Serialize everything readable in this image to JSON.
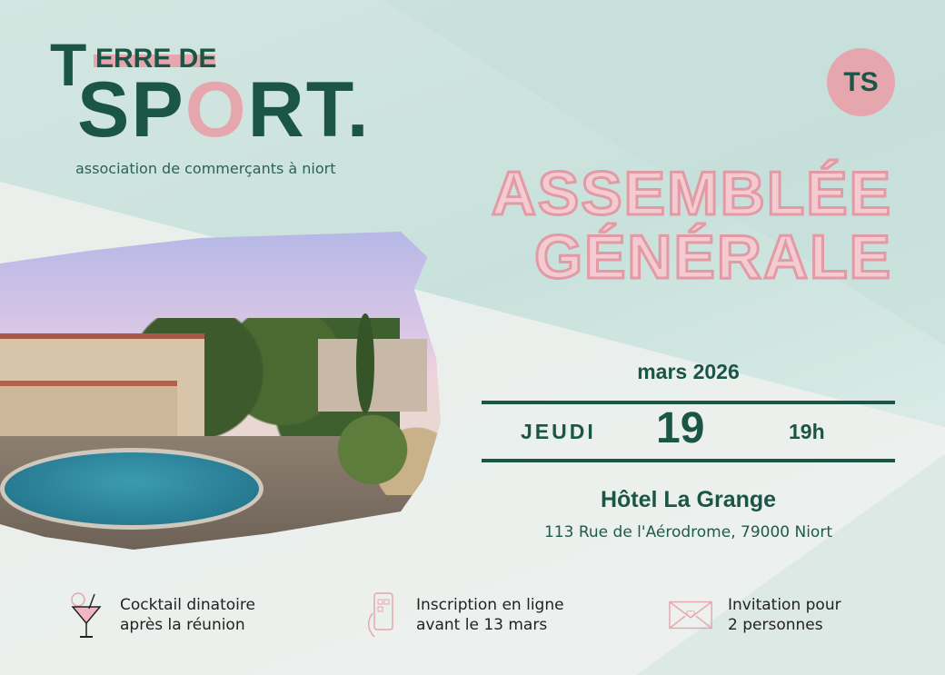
{
  "logo": {
    "letter_t": "T",
    "terre": "ERRE DE",
    "sport_sp": "SP",
    "sport_o": "O",
    "sport_rt": "RT.",
    "tagline": "association de commerçants à niort"
  },
  "badge": {
    "text": "TS"
  },
  "event": {
    "title_line1": "ASSEMBLÉE",
    "title_line2": "GÉNÉRALE",
    "month": "mars 2026",
    "weekday": "JEUDI",
    "day": "19",
    "time": "19h",
    "venue": "Hôtel La Grange",
    "address": "113 Rue de l'Aérodrome, 79000 Niort"
  },
  "features": [
    {
      "icon": "cocktail-icon",
      "line1": "Cocktail dinatoire",
      "line2": "après la réunion"
    },
    {
      "icon": "phone-qr-icon",
      "line1": "Inscription en ligne",
      "line2": "avant le 13 mars"
    },
    {
      "icon": "envelope-heart-icon",
      "line1": "Invitation pour",
      "line2": "2 personnes"
    }
  ],
  "colors": {
    "green": "#1b5546",
    "pink": "#e5a7ad",
    "title_fill": "#f4cbd1",
    "background": "#cfe3de"
  }
}
